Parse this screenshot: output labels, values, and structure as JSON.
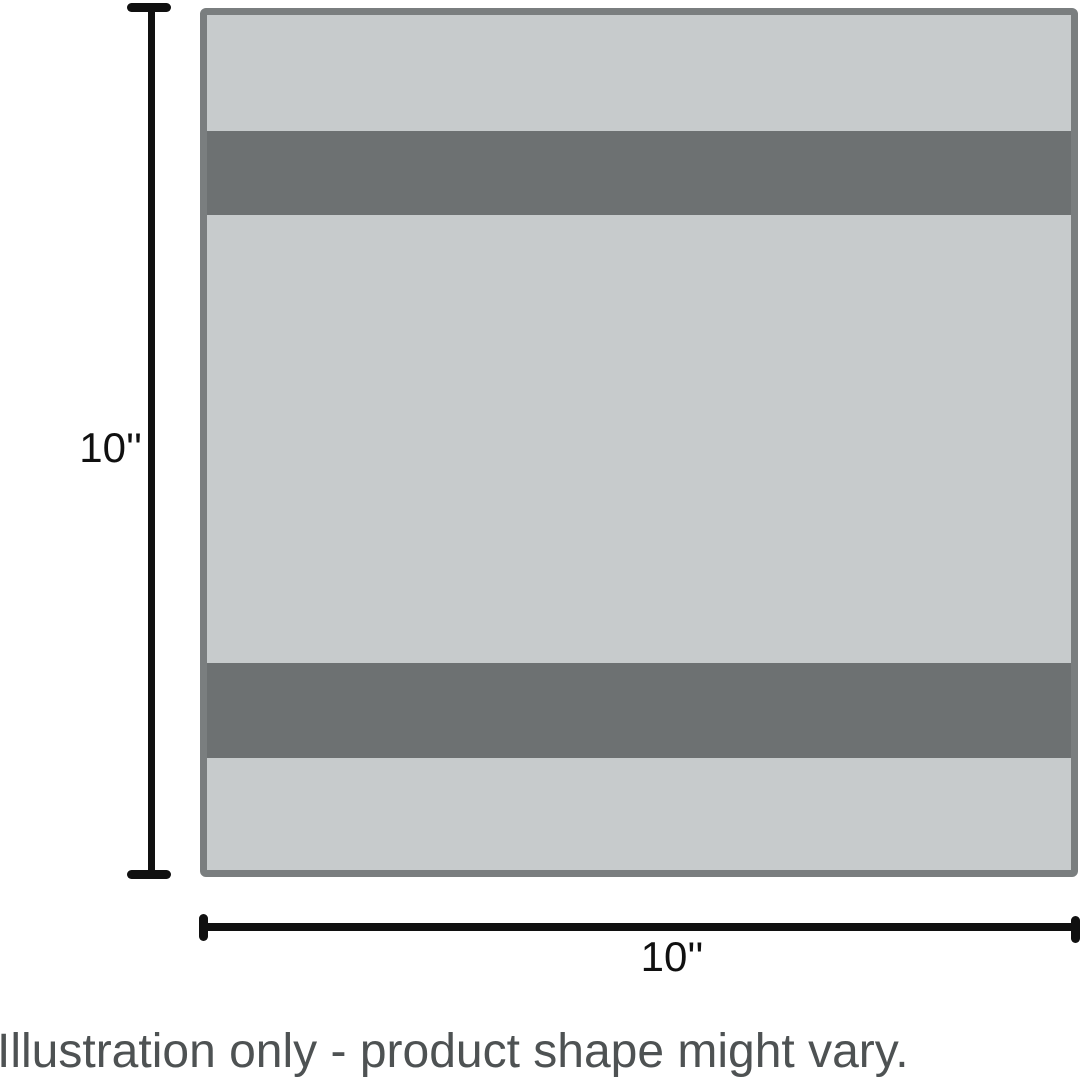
{
  "illustration": {
    "vertical_dimension_label": "10''",
    "horizontal_dimension_label": "10''",
    "caption": "Illustration only - product shape might vary.",
    "colors": {
      "square_fill": "#c7cbcc",
      "square_border": "#7a7e7f",
      "stripe": "#6d7172",
      "dimension": "#101010",
      "caption_text": "#4e5253"
    }
  }
}
